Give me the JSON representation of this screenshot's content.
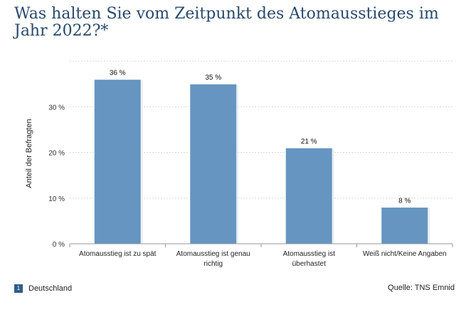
{
  "title": "Was halten Sie vom Zeitpunkt des Atomausstieges im Jahr 2022?*",
  "footer": {
    "badge": "1",
    "region": "Deutschland",
    "source": "Quelle: TNS Emnid"
  },
  "colors": {
    "bar": "#6595c0",
    "title": "#27496d",
    "badge": "#2f5c8c"
  },
  "chart_data": {
    "type": "bar",
    "title": "Was halten Sie vom Zeitpunkt des Atomausstieges im Jahr 2022?*",
    "xlabel": "",
    "ylabel": "Anteil der Befragten",
    "ylim": [
      0,
      40
    ],
    "yticks": [
      0,
      10,
      20,
      30
    ],
    "ytick_labels": [
      "0 %",
      "10 %",
      "20 %",
      "30 %"
    ],
    "grid": true,
    "categories": [
      [
        "Atomausstieg ist zu spät"
      ],
      [
        "Atomausstieg ist genau",
        "richtig"
      ],
      [
        "Atomausstieg ist",
        "überhastet"
      ],
      [
        "Weiß nicht/Keine Angaben"
      ]
    ],
    "values": [
      36,
      35,
      21,
      8
    ],
    "data_labels": [
      "36 %",
      "35 %",
      "21 %",
      "8 %"
    ]
  }
}
